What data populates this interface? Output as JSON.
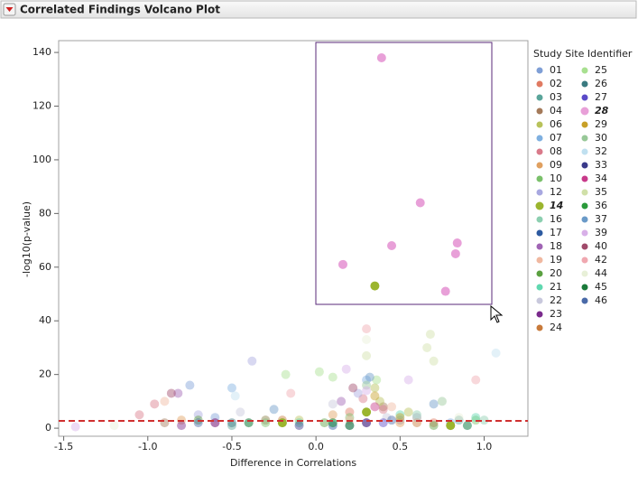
{
  "chart_data": {
    "type": "scatter",
    "title": "Correlated Findings Volcano Plot",
    "x_label": "Difference in Correlations",
    "y_label": "-log10(p-value)",
    "legend_title": "Study Site Identifier",
    "legend_position": "right",
    "grid": false,
    "xlim": [
      -1.53,
      1.26
    ],
    "ylim": [
      -3,
      144.4
    ],
    "xticks": [
      {
        "value": -1.5,
        "label": "-1.5"
      },
      {
        "value": -1,
        "label": "-1.0"
      },
      {
        "value": -0.5,
        "label": "-0.5"
      },
      {
        "value": 0,
        "label": "0.0"
      },
      {
        "value": 0.5,
        "label": "0.5"
      },
      {
        "value": 1,
        "label": "1.0"
      }
    ],
    "yticks": [
      0,
      20,
      40,
      60,
      80,
      100,
      120,
      140
    ],
    "reference_line": {
      "value": 2.7,
      "color": "#d03030"
    },
    "series": [
      {
        "name": "01",
        "color": "#7f9fd6",
        "x": [
          -0.75,
          -0.2,
          0.5,
          0.9,
          -0.6
        ],
        "values": [
          16,
          2,
          3,
          1,
          4
        ]
      },
      {
        "name": "02",
        "color": "#e07a62",
        "x": [
          -0.3,
          0.2,
          0.7
        ],
        "values": [
          3,
          6,
          2
        ]
      },
      {
        "name": "03",
        "color": "#5aa59a",
        "x": [
          0.1,
          -0.5,
          0.85
        ],
        "values": [
          2,
          1,
          3
        ]
      },
      {
        "name": "04",
        "color": "#a47a5a",
        "x": [
          0.4,
          -0.9,
          0.6
        ],
        "values": [
          8,
          2,
          4
        ]
      },
      {
        "name": "06",
        "color": "#b8c25a",
        "x": [
          0.35,
          0.38,
          -0.1,
          0.55
        ],
        "values": [
          15,
          10,
          3,
          6
        ]
      },
      {
        "name": "07",
        "color": "#7fb0e0",
        "x": [
          -0.5,
          0.3,
          0.8
        ],
        "values": [
          15,
          18,
          2
        ]
      },
      {
        "name": "08",
        "color": "#d97a8a",
        "x": [
          -0.96,
          -1.05,
          0.28,
          0.4
        ],
        "values": [
          9,
          5,
          11,
          7
        ]
      },
      {
        "name": "09",
        "color": "#e0a060",
        "x": [
          -0.8,
          0.5,
          0.1
        ],
        "values": [
          3,
          2,
          5
        ]
      },
      {
        "name": "10",
        "color": "#7ac06a",
        "x": [
          0.2,
          -0.3,
          0.95
        ],
        "values": [
          4,
          2,
          3
        ]
      },
      {
        "name": "12",
        "color": "#a8a8e0",
        "x": [
          -0.38,
          0.25,
          -0.7
        ],
        "values": [
          25,
          13,
          5
        ]
      },
      {
        "name": "14",
        "color": "#9bb52e",
        "selected": true,
        "x": [
          0.35,
          0.3,
          -0.2,
          0.8
        ],
        "values": [
          53,
          6,
          2,
          1
        ]
      },
      {
        "name": "16",
        "color": "#8ccfb0",
        "x": [
          0.6,
          -0.4,
          1.0
        ],
        "values": [
          5,
          2,
          3
        ]
      },
      {
        "name": "17",
        "color": "#2d5aa0",
        "x": [
          0.1,
          -0.6
        ],
        "values": [
          1,
          2
        ]
      },
      {
        "name": "18",
        "color": "#a064b4",
        "x": [
          -0.82,
          0.15
        ],
        "values": [
          13,
          10
        ]
      },
      {
        "name": "19",
        "color": "#f0b8a0",
        "x": [
          -0.9,
          0.45,
          0.2
        ],
        "values": [
          10,
          8,
          3
        ]
      },
      {
        "name": "20",
        "color": "#5aa040",
        "x": [
          0.05,
          -0.7,
          0.7
        ],
        "values": [
          2,
          3,
          1
        ]
      },
      {
        "name": "21",
        "color": "#60d8b0",
        "x": [
          0.95,
          -0.1,
          0.5
        ],
        "values": [
          4,
          2,
          5
        ]
      },
      {
        "name": "22",
        "color": "#c8c8dc",
        "x": [
          -0.45,
          0.42,
          0.1
        ],
        "values": [
          6,
          4,
          9
        ]
      },
      {
        "name": "23",
        "color": "#7a2a8c",
        "x": [
          0.3,
          -0.8
        ],
        "values": [
          2,
          1
        ]
      },
      {
        "name": "24",
        "color": "#c87a3a",
        "x": [
          -0.2,
          0.6
        ],
        "values": [
          3,
          2
        ]
      },
      {
        "name": "25",
        "color": "#a8e090",
        "x": [
          -0.18,
          0.02,
          0.1,
          0.36
        ],
        "values": [
          20,
          21,
          19,
          18
        ]
      },
      {
        "name": "26",
        "color": "#3a7a80",
        "x": [
          0.2,
          -0.5
        ],
        "values": [
          1,
          2
        ]
      },
      {
        "name": "27",
        "color": "#5a4ac8",
        "x": [
          0.4,
          0.8
        ],
        "values": [
          2,
          1
        ]
      },
      {
        "name": "28",
        "color": "#e8a0d8",
        "selected": true,
        "x": [
          0.39,
          0.62,
          0.45,
          0.84,
          0.83,
          0.16,
          0.77
        ],
        "values": [
          138,
          84,
          68,
          69,
          65,
          61,
          51
        ]
      },
      {
        "name": "29",
        "color": "#c8a028",
        "x": [
          0.35,
          0.5
        ],
        "values": [
          12,
          4
        ]
      },
      {
        "name": "30",
        "color": "#98c898",
        "x": [
          0.3,
          0.75,
          -0.3
        ],
        "values": [
          16,
          10,
          3
        ]
      },
      {
        "name": "32",
        "color": "#c0e0f0",
        "x": [
          1.07,
          -0.48,
          0.6
        ],
        "values": [
          28,
          12,
          4
        ]
      },
      {
        "name": "33",
        "color": "#3a3a8a",
        "x": [
          -0.1,
          0.3
        ],
        "values": [
          1,
          2
        ]
      },
      {
        "name": "34",
        "color": "#c83a8a",
        "x": [
          0.35,
          -0.6
        ],
        "values": [
          8,
          2
        ]
      },
      {
        "name": "35",
        "color": "#d0e0a8",
        "x": [
          0.68,
          0.66,
          0.7,
          0.3
        ],
        "values": [
          35,
          30,
          25,
          27
        ]
      },
      {
        "name": "36",
        "color": "#2a9a3a",
        "x": [
          0.1,
          0.9
        ],
        "values": [
          2,
          1
        ]
      },
      {
        "name": "37",
        "color": "#6a9ac8",
        "x": [
          0.32,
          -0.25,
          0.7
        ],
        "values": [
          19,
          7,
          9
        ]
      },
      {
        "name": "39",
        "color": "#d8b0e8",
        "x": [
          0.18,
          -1.43,
          0.3,
          0.55
        ],
        "values": [
          22,
          0.5,
          14,
          18
        ]
      },
      {
        "name": "40",
        "color": "#a04a6a",
        "x": [
          -0.86,
          0.22
        ],
        "values": [
          13,
          15
        ]
      },
      {
        "name": "42",
        "color": "#f0a8b0",
        "x": [
          0.3,
          0.95,
          -0.15
        ],
        "values": [
          37,
          18,
          13
        ]
      },
      {
        "name": "44",
        "color": "#e8f0d8",
        "x": [
          0.85,
          -1.2,
          0.3
        ],
        "values": [
          4,
          1,
          33
        ]
      },
      {
        "name": "45",
        "color": "#1a7a3a",
        "x": [
          0.2,
          -0.4
        ],
        "values": [
          1,
          2
        ]
      },
      {
        "name": "46",
        "color": "#4a6aa8",
        "x": [
          -0.7,
          0.45
        ],
        "values": [
          2,
          3
        ]
      }
    ]
  }
}
